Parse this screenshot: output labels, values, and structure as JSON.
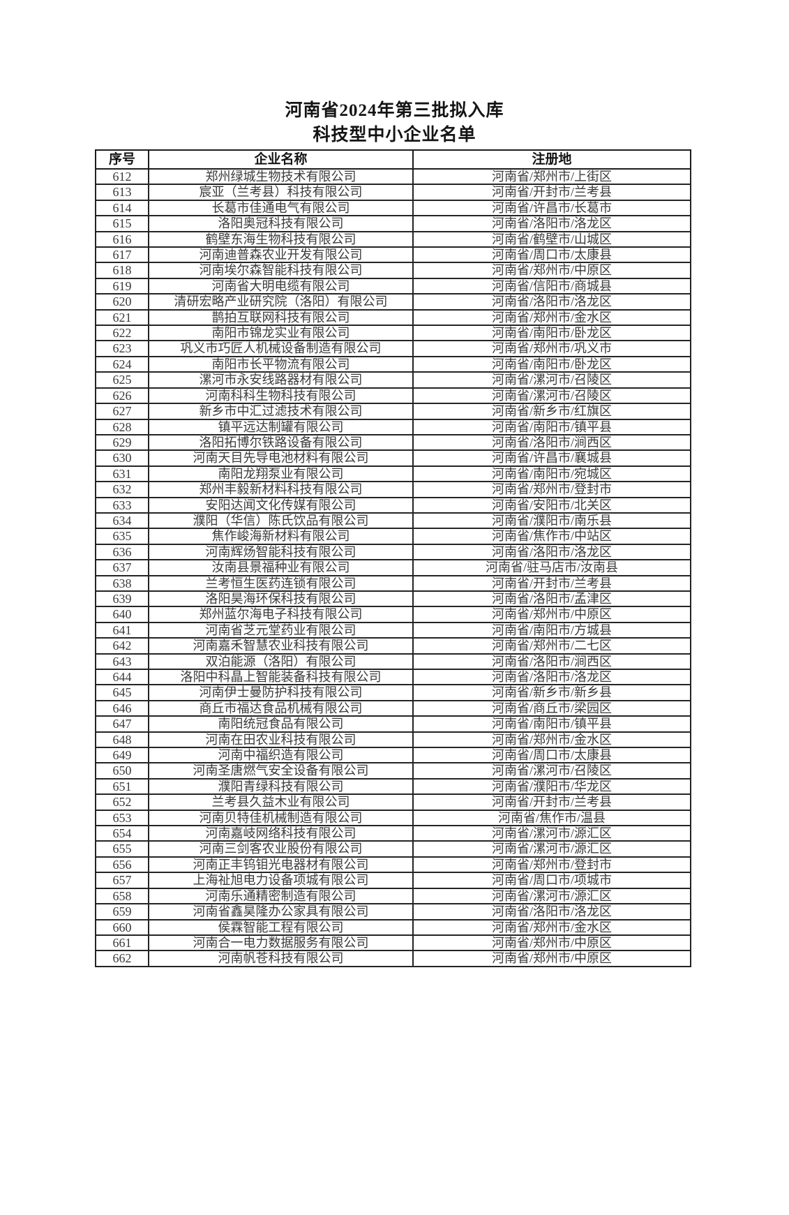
{
  "page": {
    "title_line1": "河南省2024年第三批拟入库",
    "title_line2": "科技型中小企业名单"
  },
  "colors": {
    "background": "#ffffff",
    "text": "#3a3a3a",
    "heading": "#141414",
    "table_border": "#1c1c1c"
  },
  "table": {
    "headers": [
      "序号",
      "企业名称",
      "注册地"
    ],
    "rows": [
      [
        "612",
        "郑州绿城生物技术有限公司",
        "河南省/郑州市/上街区"
      ],
      [
        "613",
        "宸亚（兰考县）科技有限公司",
        "河南省/开封市/兰考县"
      ],
      [
        "614",
        "长葛市佳通电气有限公司",
        "河南省/许昌市/长葛市"
      ],
      [
        "615",
        "洛阳奥冠科技有限公司",
        "河南省/洛阳市/洛龙区"
      ],
      [
        "616",
        "鹤壁东海生物科技有限公司",
        "河南省/鹤壁市/山城区"
      ],
      [
        "617",
        "河南迪普森农业开发有限公司",
        "河南省/周口市/太康县"
      ],
      [
        "618",
        "河南埃尔森智能科技有限公司",
        "河南省/郑州市/中原区"
      ],
      [
        "619",
        "河南省大明电缆有限公司",
        "河南省/信阳市/商城县"
      ],
      [
        "620",
        "清研宏略产业研究院（洛阳）有限公司",
        "河南省/洛阳市/洛龙区"
      ],
      [
        "621",
        "鹊拍互联网科技有限公司",
        "河南省/郑州市/金水区"
      ],
      [
        "622",
        "南阳市锦龙实业有限公司",
        "河南省/南阳市/卧龙区"
      ],
      [
        "623",
        "巩义市巧匠人机械设备制造有限公司",
        "河南省/郑州市/巩义市"
      ],
      [
        "624",
        "南阳市长平物流有限公司",
        "河南省/南阳市/卧龙区"
      ],
      [
        "625",
        "漯河市永安线路器材有限公司",
        "河南省/漯河市/召陵区"
      ],
      [
        "626",
        "河南科科生物科技有限公司",
        "河南省/漯河市/召陵区"
      ],
      [
        "627",
        "新乡市中汇过滤技术有限公司",
        "河南省/新乡市/红旗区"
      ],
      [
        "628",
        "镇平远达制罐有限公司",
        "河南省/南阳市/镇平县"
      ],
      [
        "629",
        "洛阳拓博尔铁路设备有限公司",
        "河南省/洛阳市/涧西区"
      ],
      [
        "630",
        "河南天目先导电池材料有限公司",
        "河南省/许昌市/襄城县"
      ],
      [
        "631",
        "南阳龙翔泵业有限公司",
        "河南省/南阳市/宛城区"
      ],
      [
        "632",
        "郑州丰毅新材料科技有限公司",
        "河南省/郑州市/登封市"
      ],
      [
        "633",
        "安阳达闻文化传媒有限公司",
        "河南省/安阳市/北关区"
      ],
      [
        "634",
        "濮阳（华信）陈氏饮品有限公司",
        "河南省/濮阳市/南乐县"
      ],
      [
        "635",
        "焦作峻海新材料有限公司",
        "河南省/焦作市/中站区"
      ],
      [
        "636",
        "河南辉炀智能科技有限公司",
        "河南省/洛阳市/洛龙区"
      ],
      [
        "637",
        "汝南县景福种业有限公司",
        "河南省/驻马店市/汝南县"
      ],
      [
        "638",
        "兰考恒生医药连锁有限公司",
        "河南省/开封市/兰考县"
      ],
      [
        "639",
        "洛阳昊海环保科技有限公司",
        "河南省/洛阳市/孟津区"
      ],
      [
        "640",
        "郑州蓝尔海电子科技有限公司",
        "河南省/郑州市/中原区"
      ],
      [
        "641",
        "河南省芝元堂药业有限公司",
        "河南省/南阳市/方城县"
      ],
      [
        "642",
        "河南嘉禾智慧农业科技有限公司",
        "河南省/郑州市/二七区"
      ],
      [
        "643",
        "双泊能源（洛阳）有限公司",
        "河南省/洛阳市/涧西区"
      ],
      [
        "644",
        "洛阳中科晶上智能装备科技有限公司",
        "河南省/洛阳市/洛龙区"
      ],
      [
        "645",
        "河南伊士曼防护科技有限公司",
        "河南省/新乡市/新乡县"
      ],
      [
        "646",
        "商丘市福达食品机械有限公司",
        "河南省/商丘市/梁园区"
      ],
      [
        "647",
        "南阳统冠食品有限公司",
        "河南省/南阳市/镇平县"
      ],
      [
        "648",
        "河南在田农业科技有限公司",
        "河南省/郑州市/金水区"
      ],
      [
        "649",
        "河南中福织造有限公司",
        "河南省/周口市/太康县"
      ],
      [
        "650",
        "河南圣唐燃气安全设备有限公司",
        "河南省/漯河市/召陵区"
      ],
      [
        "651",
        "濮阳青绿科技有限公司",
        "河南省/濮阳市/华龙区"
      ],
      [
        "652",
        "兰考县久益木业有限公司",
        "河南省/开封市/兰考县"
      ],
      [
        "653",
        "河南贝特佳机械制造有限公司",
        "河南省/焦作市/温县"
      ],
      [
        "654",
        "河南嘉岐网络科技有限公司",
        "河南省/漯河市/源汇区"
      ],
      [
        "655",
        "河南三剑客农业股份有限公司",
        "河南省/漯河市/源汇区"
      ],
      [
        "656",
        "河南正丰钨钼光电器材有限公司",
        "河南省/郑州市/登封市"
      ],
      [
        "657",
        "上海祉旭电力设备项城有限公司",
        "河南省/周口市/项城市"
      ],
      [
        "658",
        "河南乐通精密制造有限公司",
        "河南省/漯河市/源汇区"
      ],
      [
        "659",
        "河南省鑫昊隆办公家具有限公司",
        "河南省/洛阳市/洛龙区"
      ],
      [
        "660",
        "侯霖智能工程有限公司",
        "河南省/郑州市/金水区"
      ],
      [
        "661",
        "河南合一电力数据服务有限公司",
        "河南省/郑州市/中原区"
      ],
      [
        "662",
        "河南帆苍科技有限公司",
        "河南省/郑州市/中原区"
      ]
    ]
  }
}
